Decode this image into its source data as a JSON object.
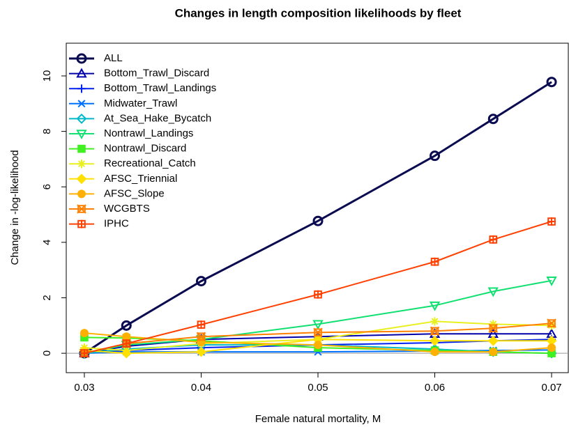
{
  "chart_data": {
    "type": "line",
    "title": "Changes in length composition likelihoods by fleet",
    "x_label": "Female natural mortality, M",
    "y_label": "Change in -log-likelihood",
    "x": [
      0.03,
      0.0336,
      0.04,
      0.05,
      0.06,
      0.065,
      0.07
    ],
    "xlim": [
      0.02845,
      0.07143
    ],
    "ylim": [
      -0.7,
      11.18
    ],
    "xticks": [
      0.03,
      0.04,
      0.05,
      0.06,
      0.07
    ],
    "yticks": [
      0,
      2,
      4,
      6,
      8,
      10
    ],
    "reference_line": 0,
    "legend": "top-left",
    "series": [
      {
        "name": "ALL",
        "color": "#0a0a50",
        "marker": "circle",
        "values": [
          0,
          1.0,
          2.6,
          4.77,
          7.12,
          8.45,
          9.78
        ]
      },
      {
        "name": "Bottom_Trawl_Discard",
        "color": "#0000a8",
        "marker": "triangle",
        "values": [
          0,
          0.25,
          0.5,
          0.6,
          0.7,
          0.7,
          0.7
        ]
      },
      {
        "name": "Bottom_Trawl_Landings",
        "color": "#0020f0",
        "marker": "plus",
        "values": [
          0,
          0.1,
          0.2,
          0.3,
          0.38,
          0.45,
          0.5
        ]
      },
      {
        "name": "Midwater_Trawl",
        "color": "#0070ff",
        "marker": "x",
        "values": [
          0,
          0.05,
          0.05,
          0.05,
          0.08,
          0.1,
          0.12
        ]
      },
      {
        "name": "At_Sea_Hake_Bycatch",
        "color": "#00b8c8",
        "marker": "diamond",
        "values": [
          0,
          0.15,
          0.3,
          0.3,
          0.15,
          0.05,
          0
        ]
      },
      {
        "name": "Nontrawl_Landings",
        "color": "#10e070",
        "marker": "triangle-down",
        "values": [
          0,
          0.3,
          0.5,
          1.05,
          1.72,
          2.23,
          2.62
        ]
      },
      {
        "name": "Nontrawl_Discard",
        "color": "#40f020",
        "marker": "square",
        "values": [
          0.57,
          0.55,
          0.45,
          0.2,
          0.1,
          0.05,
          0
        ]
      },
      {
        "name": "Recreational_Catch",
        "color": "#e8f020",
        "marker": "asterisk",
        "values": [
          0.2,
          0.1,
          0.35,
          0.5,
          1.15,
          1.05,
          1.0
        ]
      },
      {
        "name": "AFSC_Triennial",
        "color": "#ffe000",
        "marker": "diamond-filled",
        "values": [
          0.1,
          0,
          0.05,
          0.5,
          0.45,
          0.45,
          0.45
        ]
      },
      {
        "name": "AFSC_Slope",
        "color": "#ffb000",
        "marker": "circle-filled",
        "values": [
          0.73,
          0.6,
          0.4,
          0.3,
          0.05,
          0.05,
          0.2
        ]
      },
      {
        "name": "WCGBTS",
        "color": "#ff8000",
        "marker": "square-cross",
        "values": [
          0,
          0.35,
          0.6,
          0.75,
          0.8,
          0.9,
          1.08
        ]
      },
      {
        "name": "IPHC",
        "color": "#ff4000",
        "marker": "square-plus",
        "values": [
          0,
          0.35,
          1.03,
          2.12,
          3.3,
          4.1,
          4.75
        ]
      }
    ]
  }
}
